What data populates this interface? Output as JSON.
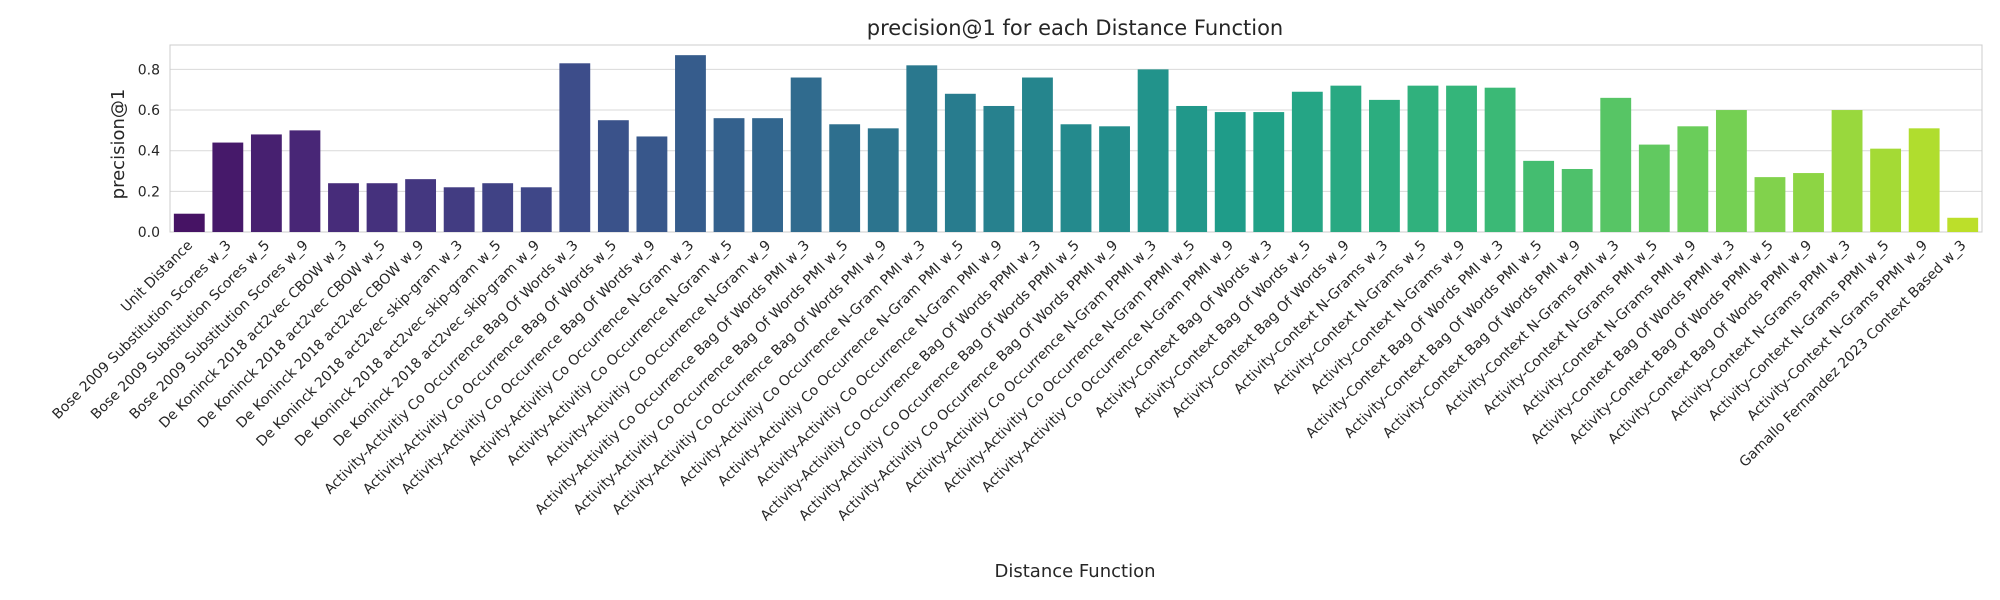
{
  "chart_data": {
    "type": "bar",
    "title": "precision@1 for each Distance Function",
    "xlabel": "Distance Function",
    "ylabel": "precision@1",
    "ylim": [
      0,
      0.92
    ],
    "yticks": [
      0.0,
      0.2,
      0.4,
      0.6,
      0.8
    ],
    "ytick_labels": [
      "0.0",
      "0.2",
      "0.4",
      "0.6",
      "0.8"
    ],
    "grid": "horizontal",
    "palette": "viridis",
    "categories": [
      "Unit Distance",
      "Bose 2009 Substitution Scores w_3",
      "Bose 2009 Substitution Scores w_5",
      "Bose 2009 Substitution Scores w_9",
      "De Koninck 2018 act2vec CBOW w_3",
      "De Koninck 2018 act2vec CBOW w_5",
      "De Koninck 2018 act2vec CBOW w_9",
      "De Koninck 2018 act2vec skip-gram w_3",
      "De Koninck 2018 act2vec skip-gram w_5",
      "De Koninck 2018 act2vec skip-gram w_9",
      "Activity-Activitiy Co Occurrence Bag Of Words w_3",
      "Activity-Activitiy Co Occurrence Bag Of Words w_5",
      "Activity-Activitiy Co Occurrence Bag Of Words w_9",
      "Activity-Activitiy Co Occurrence N-Gram w_3",
      "Activity-Activitiy Co Occurrence N-Gram w_5",
      "Activity-Activitiy Co Occurrence N-Gram w_9",
      "Activity-Activitiy Co Occurrence Bag Of Words PMI w_3",
      "Activity-Activitiy Co Occurrence Bag Of Words PMI w_5",
      "Activity-Activitiy Co Occurrence Bag Of Words PMI w_9",
      "Activity-Activitiy Co Occurrence N-Gram PMI w_3",
      "Activity-Activitiy Co Occurrence N-Gram PMI w_5",
      "Activity-Activitiy Co Occurrence N-Gram PMI w_9",
      "Activity-Activitiy Co Occurrence Bag Of Words PPMI w_3",
      "Activity-Activitiy Co Occurrence Bag Of Words PPMI w_5",
      "Activity-Activitiy Co Occurrence Bag Of Words PPMI w_9",
      "Activity-Activitiy Co Occurrence N-Gram PPMI w_3",
      "Activity-Activitiy Co Occurrence N-Gram PPMI w_5",
      "Activity-Activitiy Co Occurrence N-Gram PPMI w_9",
      "Activity-Context Bag Of Words w_3",
      "Activity-Context Bag Of Words w_5",
      "Activity-Context Bag Of Words w_9",
      "Activity-Context N-Grams w_3",
      "Activity-Context N-Grams w_5",
      "Activity-Context N-Grams w_9",
      "Activity-Context Bag Of Words PMI w_3",
      "Activity-Context Bag Of Words PMI w_5",
      "Activity-Context Bag Of Words PMI w_9",
      "Activity-Context N-Grams PMI w_3",
      "Activity-Context N-Grams PMI w_5",
      "Activity-Context N-Grams PMI w_9",
      "Activity-Context Bag Of Words PPMI w_3",
      "Activity-Context Bag Of Words PPMI w_5",
      "Activity-Context Bag Of Words PPMI w_9",
      "Activity-Context N-Grams PPMI w_3",
      "Activity-Context N-Grams PPMI w_5",
      "Activity-Context N-Grams PPMI w_9",
      "Gamallo Fernandez 2023 Context Based w_3"
    ],
    "values": [
      0.09,
      0.44,
      0.48,
      0.5,
      0.24,
      0.24,
      0.26,
      0.22,
      0.24,
      0.22,
      0.83,
      0.55,
      0.47,
      0.87,
      0.56,
      0.56,
      0.76,
      0.53,
      0.51,
      0.82,
      0.68,
      0.62,
      0.76,
      0.53,
      0.52,
      0.8,
      0.62,
      0.59,
      0.59,
      0.69,
      0.72,
      0.65,
      0.72,
      0.72,
      0.71,
      0.35,
      0.31,
      0.66,
      0.43,
      0.52,
      0.6,
      0.27,
      0.29,
      0.6,
      0.41,
      0.51,
      0.07
    ]
  }
}
